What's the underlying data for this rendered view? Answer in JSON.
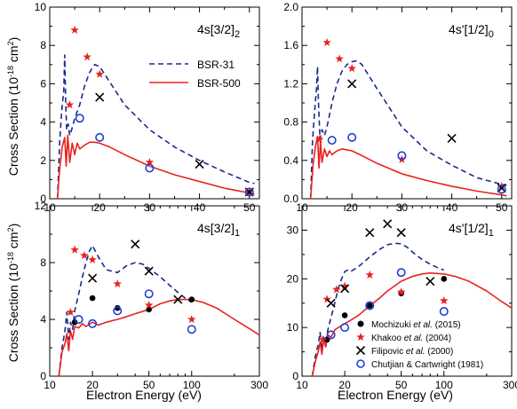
{
  "figure": {
    "ylabel": "Cross Section (10⁻¹⁸ cm²)",
    "xlabel": "Electron Energy (eV)"
  },
  "colors": {
    "bsr31": "#1a2a8c",
    "bsr500": "#e8231f",
    "mochizuki": "#000000",
    "khakoo": "#e8231f",
    "filipovic": "#000000",
    "chutjian": "#1f3fd6"
  },
  "legend_top": {
    "bsr31": "BSR-31",
    "bsr500": "BSR-500"
  },
  "legend_bottom": {
    "mochizuki": [
      "Mochizuki ",
      "et al.",
      " (2015)"
    ],
    "khakoo": [
      "Khakoo ",
      "et al.",
      " (2004)"
    ],
    "filipovic": [
      "Filipovic ",
      "et al.",
      " (2000)"
    ],
    "chutjian": "Chutjian & Cartwright (1981)"
  },
  "chart_data": [
    {
      "type": "line",
      "title": "4s[3/2]2",
      "title_main": "4s[3/2]",
      "title_sub": "2",
      "ylabel": "Cross Section (10⁻¹⁸ cm²)",
      "xscale": "linear",
      "xlim": [
        10,
        52
      ],
      "ylim": [
        0,
        10
      ],
      "xticks": [
        "10",
        "20",
        "30",
        "40",
        "50"
      ],
      "xtick_values": [
        10,
        20,
        30,
        40,
        50
      ],
      "yticks": [
        "0",
        "2",
        "4",
        "6",
        "8",
        "10"
      ],
      "ytick_values": [
        0,
        2,
        4,
        6,
        8,
        10
      ],
      "series": [
        {
          "name": "BSR-31",
          "style": "dashed",
          "x": [
            11.55,
            12.0,
            12.4,
            12.8,
            13.0,
            13.2,
            13.4,
            13.7,
            14.0,
            14.5,
            15.0,
            16.0,
            17.0,
            18.0,
            19.0,
            20.0,
            22.0,
            25.0,
            30.0,
            35.0,
            40.0,
            45.0,
            50.0,
            51.0
          ],
          "y": [
            0,
            3.0,
            4.6,
            5.6,
            7.5,
            5.0,
            3.6,
            3.9,
            3.3,
            3.7,
            4.2,
            4.9,
            5.9,
            6.6,
            7.0,
            6.9,
            6.1,
            4.9,
            3.6,
            2.7,
            2.0,
            1.4,
            0.85,
            0.8
          ]
        },
        {
          "name": "BSR-500",
          "style": "solid",
          "x": [
            11.55,
            12.0,
            12.5,
            13.0,
            13.3,
            13.6,
            14.0,
            14.5,
            15.0,
            15.5,
            16.0,
            17.0,
            18.0,
            19.0,
            20.0,
            22.0,
            25.0,
            30.0,
            35.0,
            40.0,
            45.0,
            50.0,
            51.0
          ],
          "y": [
            0,
            1.6,
            2.7,
            3.2,
            1.7,
            3.3,
            1.9,
            2.9,
            2.3,
            2.9,
            2.6,
            2.8,
            2.95,
            2.95,
            2.9,
            2.7,
            2.3,
            1.7,
            1.25,
            0.9,
            0.55,
            0.3,
            0.25
          ]
        },
        {
          "name": "Khakoo et al. (2004)",
          "marker": "star",
          "x": [
            14.0,
            15.0,
            17.5,
            20.0,
            30.0,
            50.0
          ],
          "y": [
            4.9,
            8.8,
            7.4,
            6.5,
            1.9,
            0.35
          ]
        },
        {
          "name": "Filipovic et al. (2000)",
          "marker": "x",
          "x": [
            20.0,
            40.0,
            50.0
          ],
          "y": [
            5.3,
            1.8,
            0.35
          ]
        },
        {
          "name": "Chutjian & Cartwright (1981)",
          "marker": "circle",
          "x": [
            16.0,
            20.0,
            30.0,
            50.0
          ],
          "y": [
            4.2,
            3.2,
            1.6,
            0.35
          ]
        }
      ]
    },
    {
      "type": "line",
      "title": "4s'[1/2]0",
      "title_main": "4s'[1/2]",
      "title_sub": "0",
      "xscale": "linear",
      "xlim": [
        10,
        52
      ],
      "ylim": [
        0,
        2.0
      ],
      "xticks": [
        "10",
        "20",
        "30",
        "40",
        "50"
      ],
      "xtick_values": [
        10,
        20,
        30,
        40,
        50
      ],
      "yticks": [
        "0.0",
        "0.4",
        "0.8",
        "1.2",
        "1.6",
        "2.0"
      ],
      "ytick_values": [
        0,
        0.4,
        0.8,
        1.2,
        1.6,
        2.0
      ],
      "series": [
        {
          "name": "BSR-31",
          "style": "dashed",
          "x": [
            11.72,
            12.1,
            12.5,
            12.9,
            13.1,
            13.3,
            13.6,
            14.0,
            14.5,
            15.0,
            16.0,
            17.0,
            18.0,
            19.0,
            20.0,
            21.0,
            22.0,
            25.0,
            30.0,
            35.0,
            40.0,
            45.0,
            50.0,
            51.0
          ],
          "y": [
            0,
            0.6,
            0.9,
            1.15,
            1.38,
            1.0,
            0.62,
            0.72,
            0.66,
            0.75,
            1.0,
            1.2,
            1.33,
            1.4,
            1.43,
            1.44,
            1.4,
            1.15,
            0.75,
            0.5,
            0.35,
            0.22,
            0.15,
            0.14
          ]
        },
        {
          "name": "BSR-500",
          "style": "solid",
          "x": [
            11.72,
            12.2,
            12.7,
            13.1,
            13.4,
            13.7,
            14.0,
            14.5,
            15.0,
            15.5,
            16.0,
            17.0,
            18.0,
            19.0,
            20.0,
            22.0,
            25.0,
            30.0,
            35.0,
            40.0,
            45.0,
            50.0,
            51.0
          ],
          "y": [
            0,
            0.35,
            0.55,
            0.65,
            0.32,
            0.6,
            0.38,
            0.52,
            0.44,
            0.5,
            0.46,
            0.5,
            0.52,
            0.51,
            0.5,
            0.45,
            0.37,
            0.26,
            0.19,
            0.13,
            0.08,
            0.04,
            0.03
          ]
        },
        {
          "name": "Khakoo et al. (2004)",
          "marker": "star",
          "x": [
            13.5,
            15.0,
            17.5,
            20.0,
            30.0,
            50.0
          ],
          "y": [
            0.62,
            1.63,
            1.46,
            1.36,
            0.41,
            0.13
          ]
        },
        {
          "name": "Filipovic et al. (2000)",
          "marker": "x",
          "x": [
            20.0,
            40.0,
            50.0
          ],
          "y": [
            1.2,
            0.63,
            0.11
          ]
        },
        {
          "name": "Chutjian & Cartwright (1981)",
          "marker": "circle",
          "x": [
            16.0,
            20.0,
            30.0,
            50.0
          ],
          "y": [
            0.61,
            0.64,
            0.45,
            0.1
          ]
        }
      ]
    },
    {
      "type": "line",
      "title": "4s[3/2]1",
      "title_main": "4s[3/2]",
      "title_sub": "1",
      "ylabel": "Cross Section (10⁻¹⁸ cm²)",
      "xlabel": "Electron Energy (eV)",
      "xscale": "log",
      "xlim": [
        10,
        300
      ],
      "ylim": [
        0,
        12
      ],
      "xticks": [
        "10",
        "20",
        "50",
        "100",
        "300"
      ],
      "xtick_values": [
        10,
        20,
        50,
        100,
        300
      ],
      "yticks": [
        "0",
        "4",
        "8",
        "12"
      ],
      "ytick_values": [
        0,
        4,
        8,
        12
      ],
      "series": [
        {
          "name": "BSR-31",
          "style": "dashed",
          "x": [
            11.6,
            12.2,
            12.8,
            13.2,
            13.6,
            14.0,
            14.5,
            15.0,
            16.0,
            17.0,
            18.0,
            19.0,
            20.0,
            22.0,
            25.0,
            30.0,
            35.0,
            40.0,
            45.0,
            50.0,
            60.0,
            70.0,
            80.0,
            90.0,
            100.0
          ],
          "y": [
            0,
            2.0,
            3.2,
            4.5,
            2.6,
            3.8,
            3.3,
            4.6,
            5.8,
            7.0,
            8.0,
            8.8,
            9.2,
            8.4,
            7.5,
            7.3,
            7.8,
            8.0,
            7.9,
            7.6,
            7.0,
            6.4,
            5.9,
            5.5,
            5.2
          ]
        },
        {
          "name": "BSR-500",
          "style": "solid",
          "x": [
            11.6,
            12.2,
            12.8,
            13.2,
            13.6,
            14.0,
            14.5,
            15.0,
            16.0,
            17.0,
            18.0,
            20.0,
            22.0,
            25.0,
            30.0,
            35.0,
            40.0,
            50.0,
            60.0,
            70.0,
            80.0,
            100.0,
            120.0,
            150.0,
            200.0,
            250.0,
            300.0
          ],
          "y": [
            0,
            1.7,
            2.3,
            3.0,
            1.8,
            3.2,
            2.6,
            3.5,
            3.4,
            3.7,
            3.5,
            3.8,
            3.6,
            3.8,
            4.0,
            4.2,
            4.4,
            4.7,
            5.1,
            5.3,
            5.4,
            5.4,
            5.2,
            4.8,
            4.0,
            3.4,
            2.9
          ]
        },
        {
          "name": "Mochizuki et al. (2015)",
          "marker": "dot",
          "x": [
            15.0,
            20.0,
            30.0,
            50.0,
            100.0
          ],
          "y": [
            3.8,
            5.5,
            4.8,
            4.7,
            5.4
          ]
        },
        {
          "name": "Khakoo et al. (2004)",
          "marker": "star",
          "x": [
            14.0,
            15.0,
            17.5,
            20.0,
            30.0,
            50.0,
            100.0
          ],
          "y": [
            4.5,
            8.9,
            8.5,
            8.2,
            6.5,
            5.0,
            4.0
          ]
        },
        {
          "name": "Filipovic et al. (2000)",
          "marker": "x",
          "x": [
            20.0,
            40.0,
            50.0,
            80.0
          ],
          "y": [
            6.9,
            9.3,
            7.4,
            5.4
          ]
        },
        {
          "name": "Chutjian & Cartwright (1981)",
          "marker": "circle",
          "x": [
            16.0,
            20.0,
            30.0,
            50.0,
            100.0
          ],
          "y": [
            4.0,
            3.7,
            4.6,
            5.8,
            3.3
          ]
        }
      ]
    },
    {
      "type": "line",
      "title": "4s'[1/2]1",
      "title_main": "4s'[1/2]",
      "title_sub": "1",
      "xlabel": "Electron Energy (eV)",
      "xscale": "log",
      "xlim": [
        10,
        300
      ],
      "ylim": [
        0,
        35
      ],
      "xticks": [
        "10",
        "20",
        "50",
        "100",
        "300"
      ],
      "xtick_values": [
        10,
        20,
        50,
        100,
        300
      ],
      "yticks": [
        "0",
        "10",
        "20",
        "30"
      ],
      "ytick_values": [
        0,
        10,
        20,
        30
      ],
      "series": [
        {
          "name": "BSR-31",
          "style": "dashed",
          "x": [
            11.8,
            12.4,
            13.0,
            13.4,
            13.8,
            14.2,
            14.7,
            15.2,
            16.0,
            17.0,
            18.0,
            19.0,
            20.0,
            21.0,
            22.0,
            25.0,
            30.0,
            35.0,
            40.0,
            45.0,
            50.0,
            55.0,
            60.0,
            70.0,
            80.0,
            90.0,
            100.0
          ],
          "y": [
            0,
            4.0,
            6.5,
            9.0,
            5.5,
            8.0,
            7.0,
            9.5,
            12.0,
            15.0,
            18.0,
            20.0,
            21.5,
            21.8,
            21.5,
            22.5,
            24.5,
            26.0,
            27.0,
            27.3,
            27.2,
            26.5,
            25.5,
            24.0,
            23.0,
            22.3,
            21.8
          ]
        },
        {
          "name": "BSR-500",
          "style": "solid",
          "x": [
            11.8,
            12.4,
            13.0,
            13.4,
            13.8,
            14.2,
            14.7,
            15.2,
            16.0,
            17.0,
            18.0,
            20.0,
            22.0,
            25.0,
            30.0,
            35.0,
            40.0,
            50.0,
            60.0,
            70.0,
            80.0,
            100.0,
            120.0,
            150.0,
            200.0,
            250.0,
            300.0
          ],
          "y": [
            0,
            3.0,
            5.0,
            7.0,
            4.5,
            7.5,
            6.0,
            8.5,
            8.0,
            9.5,
            10.0,
            10.8,
            11.5,
            12.5,
            14.5,
            16.0,
            17.5,
            19.5,
            20.5,
            21.0,
            21.2,
            21.0,
            20.5,
            19.5,
            17.5,
            15.5,
            14.0
          ]
        },
        {
          "name": "Mochizuki et al. (2015)",
          "marker": "dot",
          "x": [
            15.0,
            20.0,
            30.0,
            50.0,
            100.0
          ],
          "y": [
            7.5,
            12.5,
            14.5,
            17.0,
            20.0
          ]
        },
        {
          "name": "Khakoo et al. (2004)",
          "marker": "star",
          "x": [
            14.0,
            15.0,
            17.5,
            20.0,
            30.0,
            50.0,
            100.0
          ],
          "y": [
            7.5,
            15.8,
            17.8,
            18.5,
            20.8,
            17.3,
            15.5
          ]
        },
        {
          "name": "Filipovic et al. (2000)",
          "marker": "x",
          "x": [
            16.0,
            20.0,
            30.0,
            40.0,
            50.0,
            80.0
          ],
          "y": [
            15.0,
            18.0,
            29.5,
            31.3,
            29.5,
            19.5
          ]
        },
        {
          "name": "Chutjian & Cartwright (1981)",
          "marker": "circle",
          "x": [
            16.0,
            20.0,
            30.0,
            50.0,
            100.0
          ],
          "y": [
            8.5,
            10.0,
            14.5,
            21.3,
            13.3
          ]
        }
      ]
    }
  ]
}
